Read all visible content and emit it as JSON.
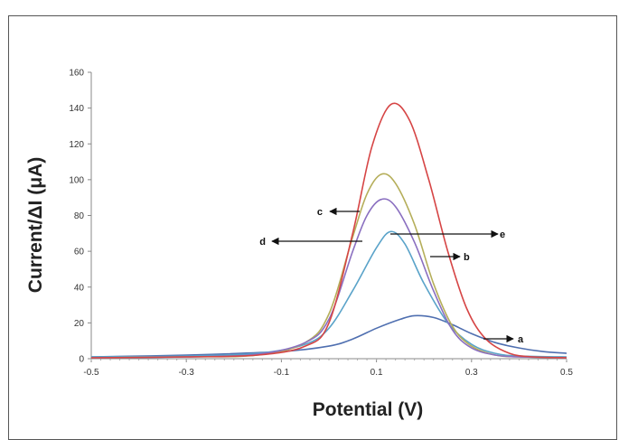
{
  "chart_data": {
    "type": "line",
    "xlabel": "Potential (V)",
    "ylabel": "Current/ΔI (μA)",
    "xlim": [
      -0.5,
      0.5
    ],
    "ylim": [
      0,
      160
    ],
    "xticks": [
      "-0.5",
      "-0.3",
      "-0.1",
      "0.1",
      "0.3",
      "0.5"
    ],
    "yticks": [
      "0",
      "20",
      "40",
      "60",
      "80",
      "100",
      "120",
      "140",
      "160"
    ],
    "grid": false,
    "legend": "none",
    "series": [
      {
        "label": "a",
        "color": "#4f6fb0",
        "x": [
          -0.5,
          -0.3,
          -0.1,
          0.0,
          0.05,
          0.1,
          0.15,
          0.18,
          0.22,
          0.26,
          0.3,
          0.35,
          0.4,
          0.45,
          0.5
        ],
        "y": [
          1,
          2,
          4,
          7,
          11,
          17,
          22,
          24,
          23,
          19,
          14,
          9,
          6,
          4,
          3
        ]
      },
      {
        "label": "b",
        "color": "#5aa3c9",
        "x": [
          -0.5,
          -0.3,
          -0.15,
          -0.05,
          0.0,
          0.05,
          0.1,
          0.13,
          0.16,
          0.2,
          0.25,
          0.3,
          0.35,
          0.4,
          0.5
        ],
        "y": [
          1,
          1.5,
          3,
          8,
          17,
          38,
          62,
          71,
          64,
          42,
          20,
          8,
          3,
          1.5,
          1
        ]
      },
      {
        "label": "c",
        "color": "#b5ae5a",
        "x": [
          -0.5,
          -0.3,
          -0.15,
          -0.05,
          0.0,
          0.05,
          0.08,
          0.11,
          0.14,
          0.18,
          0.22,
          0.26,
          0.3,
          0.35,
          0.4,
          0.5
        ],
        "y": [
          0.5,
          1,
          2,
          9,
          25,
          68,
          92,
          103,
          98,
          75,
          42,
          18,
          7,
          2,
          1,
          0.5
        ]
      },
      {
        "label": "d",
        "color": "#8a6fc0",
        "x": [
          -0.5,
          -0.3,
          -0.15,
          -0.05,
          0.0,
          0.05,
          0.08,
          0.11,
          0.14,
          0.18,
          0.22,
          0.26,
          0.3,
          0.35,
          0.4,
          0.5
        ],
        "y": [
          0.5,
          1,
          2.5,
          9,
          22,
          60,
          80,
          89,
          85,
          65,
          38,
          16,
          6,
          2,
          1,
          0.5
        ]
      },
      {
        "label": "e",
        "color": "#d64545",
        "x": [
          -0.5,
          -0.3,
          -0.15,
          -0.05,
          0.0,
          0.05,
          0.09,
          0.13,
          0.17,
          0.21,
          0.25,
          0.29,
          0.33,
          0.38,
          0.43,
          0.5
        ],
        "y": [
          0.5,
          1,
          2,
          7,
          20,
          70,
          118,
          142,
          133,
          100,
          60,
          28,
          11,
          3,
          1,
          0.5
        ]
      }
    ],
    "annotations": [
      {
        "label": "a",
        "arrow": "right"
      },
      {
        "label": "b",
        "arrow": "right"
      },
      {
        "label": "c",
        "arrow": "left"
      },
      {
        "label": "d",
        "arrow": "left"
      },
      {
        "label": "e",
        "arrow": "right"
      }
    ]
  }
}
